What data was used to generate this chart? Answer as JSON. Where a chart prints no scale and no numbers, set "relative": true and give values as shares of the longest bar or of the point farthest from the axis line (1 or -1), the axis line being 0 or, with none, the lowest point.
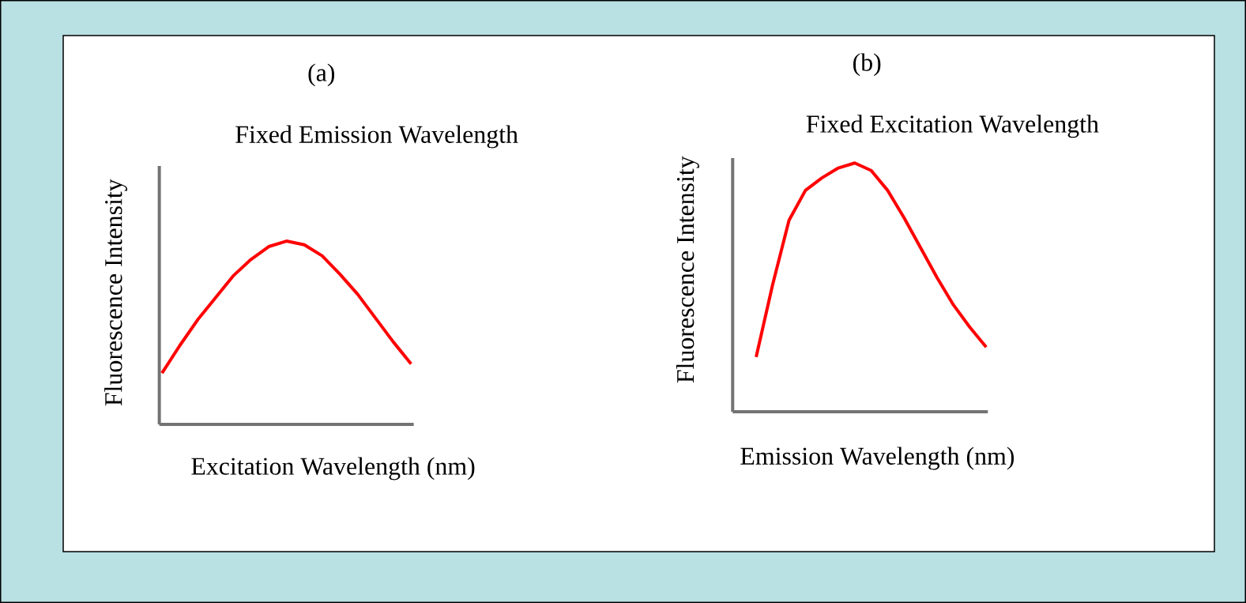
{
  "chart_data": [
    {
      "type": "line",
      "title": "(a)",
      "subtitle": "Fixed Emission Wavelength",
      "xlabel": "Excitation Wavelength (nm)",
      "ylabel": "Fluorescence Intensity",
      "relative": true,
      "color": "#ff0000",
      "categories": [
        null,
        null,
        null,
        null,
        null,
        null,
        null,
        null,
        null,
        null,
        null,
        null,
        null,
        null,
        null
      ],
      "values": [
        0.28,
        0.43,
        0.57,
        0.69,
        0.81,
        0.9,
        0.97,
        1,
        0.98,
        0.92,
        0.82,
        0.71,
        0.58,
        0.45,
        0.33
      ]
    },
    {
      "type": "line",
      "title": "(b)",
      "subtitle": "Fixed Excitation Wavelength",
      "xlabel": "Emission Wavelength (nm)",
      "ylabel": "Fluorescence Intensity",
      "relative": true,
      "color": "#ff0000",
      "categories": [
        null,
        null,
        null,
        null,
        null,
        null,
        null,
        null,
        null,
        null,
        null,
        null,
        null,
        null,
        null
      ],
      "values": [
        0.22,
        0.51,
        0.77,
        0.89,
        0.94,
        0.98,
        1,
        0.97,
        0.89,
        0.78,
        0.66,
        0.54,
        0.43,
        0.34,
        0.26
      ]
    }
  ]
}
